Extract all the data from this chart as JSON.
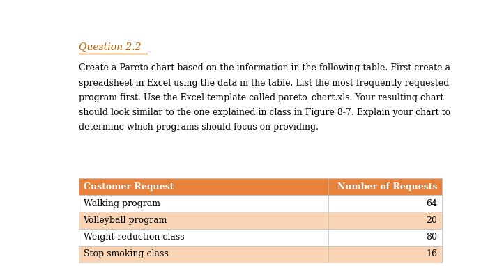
{
  "title": "Question 2.2",
  "paragraph_lines": [
    "Create a Pareto chart based on the information in the following table. First create a",
    "spreadsheet in Excel using the data in the table. List the most frequently requested",
    "program first. Use the Excel template called pareto_chart.xls. Your resulting chart",
    "should look similar to the one explained in class in Figure 8-7. Explain your chart to",
    "determine which programs should focus on providing."
  ],
  "header_col1": "Customer Request",
  "header_col2": "Number of Requests",
  "rows": [
    [
      "Walking program",
      "64"
    ],
    [
      "Volleyball program",
      "20"
    ],
    [
      "Weight reduction class",
      "80"
    ],
    [
      "Stop smoking class",
      "16"
    ]
  ],
  "header_bg": "#E8813A",
  "row_bg_even": "#FAD5B5",
  "row_bg_odd": "#FFFFFF",
  "header_text_color": "#FFFFFF",
  "body_text_color": "#000000",
  "title_color": "#C06000",
  "answer_color": "#C06000",
  "background_color": "#FFFFFF",
  "font_size_title": 10,
  "font_size_body": 9,
  "font_size_table": 9
}
